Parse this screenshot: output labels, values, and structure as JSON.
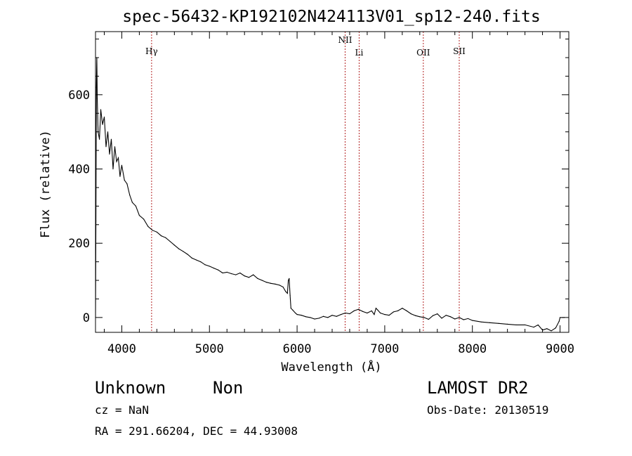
{
  "chart_data": {
    "type": "line",
    "title": "spec-56432-KP192102N424113V01_sp12-240.fits",
    "xlabel": "Wavelength (Å)",
    "ylabel": "Flux (relative)",
    "xlim": [
      3700,
      9100
    ],
    "ylim": [
      -40,
      770
    ],
    "xticks": [
      4000,
      5000,
      6000,
      7000,
      8000,
      9000
    ],
    "yticks": [
      0,
      200,
      400,
      600
    ],
    "grid": false,
    "line_color": "#000000",
    "marker_color": "#b22222",
    "series": [
      {
        "x": [
          3700,
          3705,
          3710,
          3715,
          3720,
          3730,
          3745,
          3760,
          3780,
          3800,
          3820,
          3840,
          3860,
          3880,
          3900,
          3920,
          3940,
          3960,
          3980,
          4000,
          4030,
          4060,
          4090,
          4120,
          4160,
          4200,
          4250,
          4300,
          4350,
          4400,
          4450,
          4500,
          4550,
          4600,
          4650,
          4700,
          4750,
          4800,
          4850,
          4900,
          4950,
          5000,
          5050,
          5100,
          5150,
          5200,
          5250,
          5300,
          5350,
          5400,
          5450,
          5500,
          5550,
          5600,
          5650,
          5700,
          5750,
          5800,
          5840,
          5870,
          5890,
          5900,
          5910,
          5920,
          5930,
          5950,
          5980,
          6000,
          6050,
          6100,
          6150,
          6200,
          6250,
          6300,
          6350,
          6400,
          6450,
          6500,
          6550,
          6600,
          6650,
          6700,
          6750,
          6800,
          6850,
          6880,
          6900,
          6920,
          6950,
          7000,
          7050,
          7100,
          7150,
          7200,
          7250,
          7300,
          7350,
          7400,
          7450,
          7500,
          7550,
          7600,
          7650,
          7700,
          7750,
          7800,
          7850,
          7900,
          7950,
          8000,
          8100,
          8200,
          8300,
          8400,
          8500,
          8600,
          8700,
          8750,
          8800,
          8850,
          8900,
          8950,
          8990,
          9000,
          9050
        ],
        "y": [
          0,
          260,
          620,
          700,
          590,
          500,
          480,
          560,
          520,
          540,
          460,
          500,
          440,
          480,
          400,
          460,
          420,
          430,
          380,
          410,
          370,
          360,
          330,
          310,
          300,
          275,
          265,
          245,
          235,
          230,
          220,
          215,
          205,
          195,
          185,
          178,
          170,
          160,
          155,
          150,
          142,
          138,
          133,
          128,
          120,
          122,
          118,
          115,
          120,
          112,
          108,
          115,
          105,
          100,
          95,
          92,
          90,
          87,
          82,
          70,
          65,
          100,
          105,
          60,
          25,
          20,
          12,
          8,
          6,
          2,
          0,
          -4,
          -2,
          3,
          0,
          6,
          3,
          8,
          12,
          10,
          18,
          22,
          16,
          12,
          18,
          8,
          25,
          20,
          12,
          8,
          6,
          15,
          18,
          25,
          18,
          10,
          5,
          2,
          0,
          -5,
          5,
          10,
          -2,
          6,
          2,
          -4,
          0,
          -6,
          -3,
          -8,
          -12,
          -14,
          -16,
          -18,
          -20,
          -20,
          -26,
          -20,
          -34,
          -30,
          -36,
          -28,
          -10,
          0,
          0
        ]
      }
    ],
    "annotations": [
      {
        "label": "Hγ",
        "x": 4340
      },
      {
        "label": "NII",
        "x": 6548
      },
      {
        "label": "Li",
        "x": 6708
      },
      {
        "label": "OII",
        "x": 7440
      },
      {
        "label": "SII",
        "x": 7850
      }
    ]
  },
  "info": {
    "class_label": "Unknown",
    "subclass_label": "Non",
    "survey": "LAMOST DR2",
    "cz": "cz = NaN",
    "obs_date": "Obs-Date: 20130519",
    "coords": "RA = 291.66204, DEC =  44.93008"
  }
}
